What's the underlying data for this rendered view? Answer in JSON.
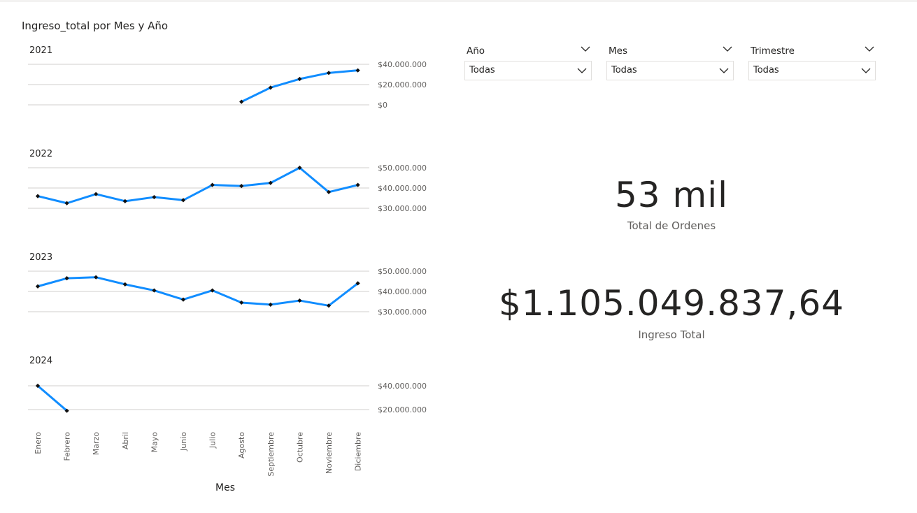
{
  "chart_data": {
    "type": "line",
    "title": "Ingreso_total por Mes y Año",
    "xlabel": "Mes",
    "categories": [
      "Enero",
      "Febrero",
      "Marzo",
      "Abril",
      "Mayo",
      "Junio",
      "Julio",
      "Agosto",
      "Septiembre",
      "Octubre",
      "Noviembre",
      "Diciembre"
    ],
    "panels": [
      {
        "label": "2021",
        "ticks": [
          0,
          20000000,
          40000000
        ],
        "tick_labels": [
          "$0",
          "$20.000.000",
          "$40.000.000"
        ],
        "ylim": [
          0,
          40000000
        ],
        "values": [
          null,
          null,
          null,
          null,
          null,
          null,
          null,
          3000000,
          17000000,
          25500000,
          31500000,
          34000000
        ]
      },
      {
        "label": "2022",
        "ticks": [
          30000000,
          40000000,
          50000000
        ],
        "tick_labels": [
          "$30.000.000",
          "$40.000.000",
          "$50.000.000"
        ],
        "ylim": [
          30000000,
          50000000
        ],
        "values": [
          36000000,
          32500000,
          37000000,
          33500000,
          35500000,
          34000000,
          41500000,
          41000000,
          42500000,
          50000000,
          38000000,
          41500000
        ]
      },
      {
        "label": "2023",
        "ticks": [
          30000000,
          40000000,
          50000000
        ],
        "tick_labels": [
          "$30.000.000",
          "$40.000.000",
          "$50.000.000"
        ],
        "ylim": [
          30000000,
          50000000
        ],
        "values": [
          42500000,
          46500000,
          47000000,
          43500000,
          40500000,
          36000000,
          40500000,
          34500000,
          33500000,
          35500000,
          33000000,
          44000000
        ]
      },
      {
        "label": "2024",
        "ticks": [
          20000000,
          40000000
        ],
        "tick_labels": [
          "$20.000.000",
          "$40.000.000"
        ],
        "ylim": [
          20000000,
          40000000
        ],
        "values": [
          40000000,
          19000000,
          null,
          null,
          null,
          null,
          null,
          null,
          null,
          null,
          null,
          null
        ]
      }
    ],
    "color": "#118DFF",
    "grid": true
  },
  "slicers": [
    {
      "header": "Año",
      "value": "Todas"
    },
    {
      "header": "Mes",
      "value": "Todas"
    },
    {
      "header": "Trimestre",
      "value": "Todas"
    }
  ],
  "kpis": [
    {
      "value": "53 mil",
      "label": "Total de Ordenes"
    },
    {
      "value": "$1.105.049.837,64",
      "label": "Ingreso Total"
    }
  ],
  "icons": {
    "dropdown": "chevron-down-icon"
  }
}
